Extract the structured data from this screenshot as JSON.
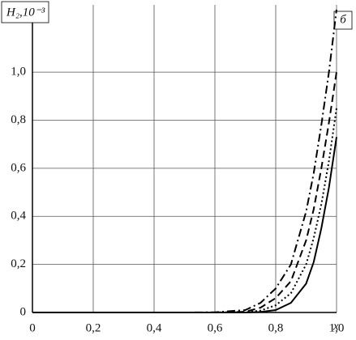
{
  "chart_data": {
    "type": "line",
    "y_label": "H₂,10⁻³",
    "x_label": "x",
    "panel_label": "б",
    "x": [
      0,
      0.5,
      0.6,
      0.7,
      0.75,
      0.8,
      0.85,
      0.9,
      0.925,
      0.95,
      0.975,
      1.0
    ],
    "series": [
      {
        "color": "#000000",
        "dash": "solid",
        "values": [
          0,
          0,
          0,
          0,
          0.002,
          0.01,
          0.04,
          0.12,
          0.21,
          0.35,
          0.52,
          0.73
        ]
      },
      {
        "color": "#000000",
        "dash": "dotted",
        "values": [
          0,
          0,
          0,
          0.001,
          0.008,
          0.03,
          0.08,
          0.2,
          0.31,
          0.45,
          0.63,
          0.85
        ]
      },
      {
        "color": "#000000",
        "dash": "dashed",
        "values": [
          0,
          0,
          0,
          0.003,
          0.02,
          0.06,
          0.13,
          0.3,
          0.43,
          0.6,
          0.79,
          1.0
        ]
      },
      {
        "color": "#000000",
        "dash": "dashdot",
        "values": [
          0,
          0,
          0.001,
          0.01,
          0.04,
          0.1,
          0.2,
          0.42,
          0.58,
          0.78,
          1.0,
          1.26
        ]
      }
    ],
    "xlim": [
      0,
      1.0
    ],
    "ylim": [
      0,
      1.28
    ],
    "xticks": [
      0,
      {
        "value": 0.2,
        "label": "0,2"
      },
      {
        "value": 0.4,
        "label": "0,4"
      },
      {
        "value": 0.6,
        "label": "0,6"
      },
      {
        "value": 0.8,
        "label": "0,8"
      },
      {
        "value": 1.0,
        "label": "1,0"
      }
    ],
    "yticks": [
      0,
      {
        "value": 0.2,
        "label": "0,2"
      },
      {
        "value": 0.4,
        "label": "0,4"
      },
      {
        "value": 0.6,
        "label": "0,6"
      },
      {
        "value": 0.8,
        "label": "0,8"
      },
      {
        "value": 1.0,
        "label": "1,0"
      }
    ],
    "grid": true
  }
}
